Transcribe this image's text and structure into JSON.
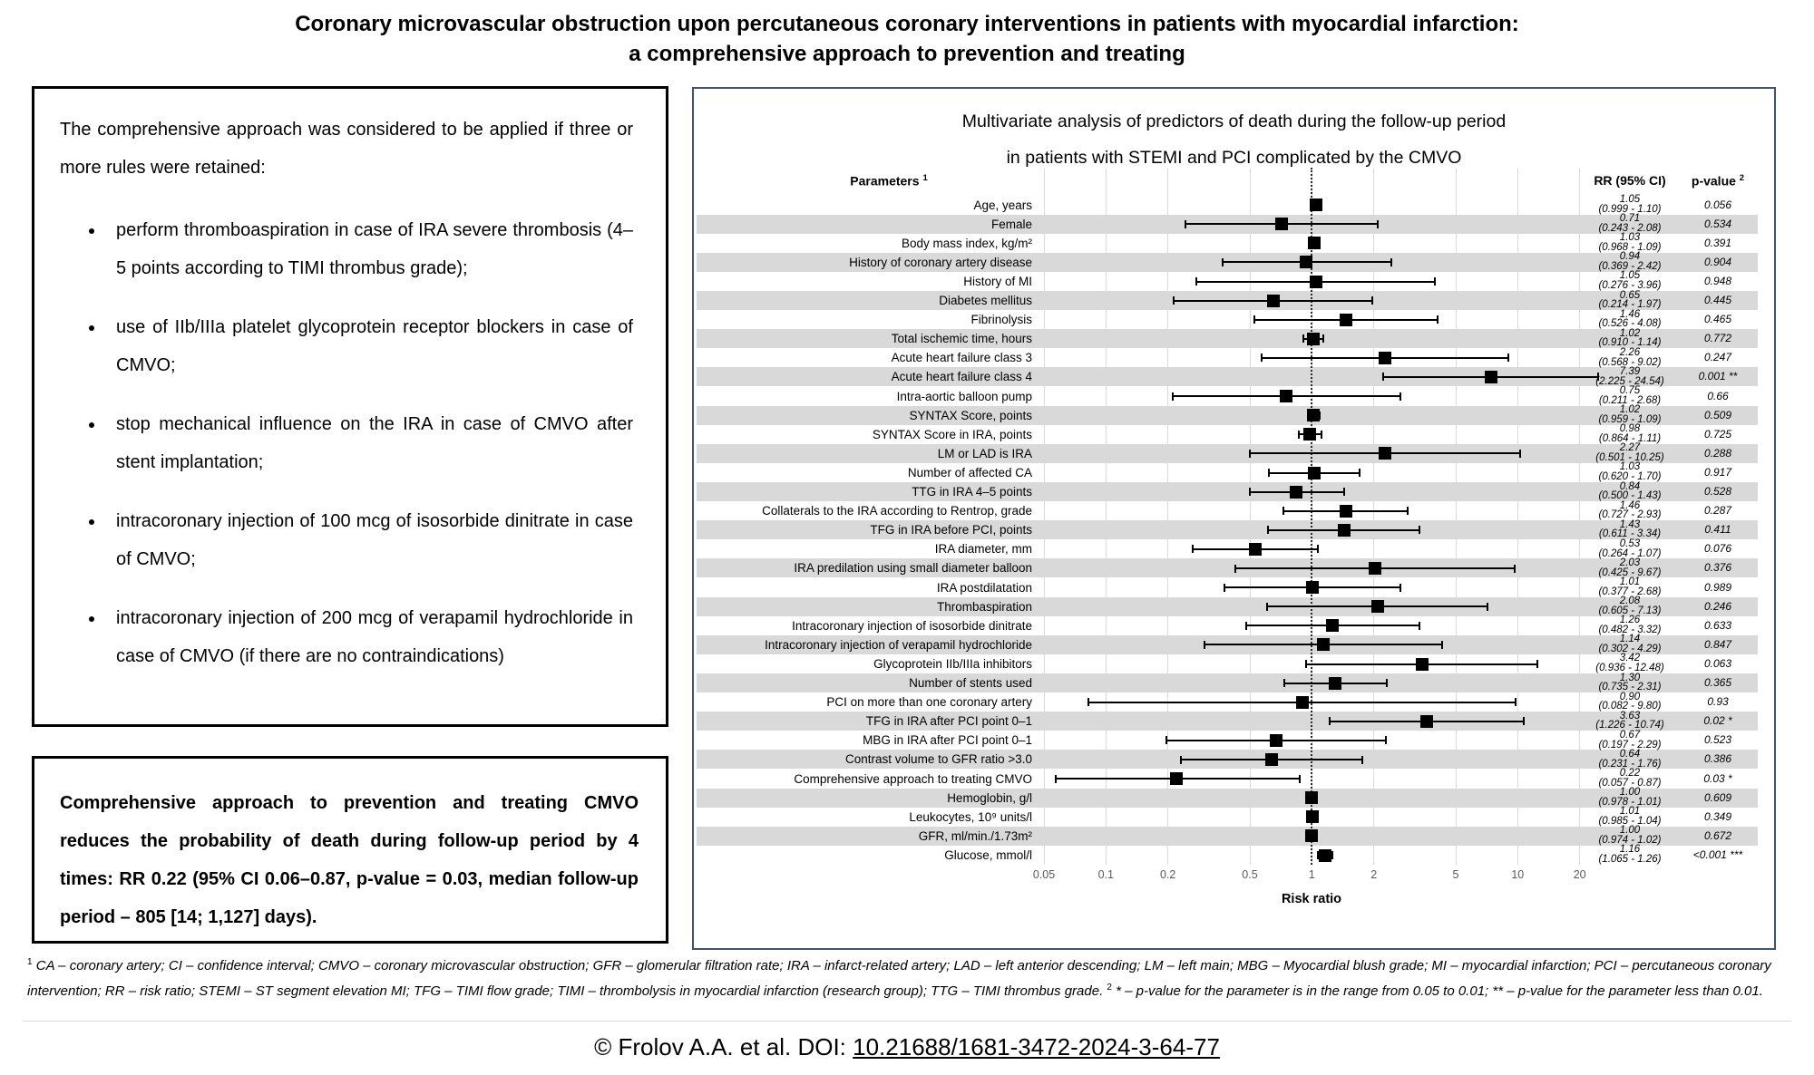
{
  "page": {
    "title_line1": "Coronary microvascular obstruction upon percutaneous coronary interventions in patients with myocardial infarction:",
    "title_line2": "a comprehensive approach to prevention and treating"
  },
  "left_panel": {
    "intro": "The comprehensive approach was considered to be applied if three or more rules were retained:",
    "bullets": [
      "perform thromboaspiration in case of IRA severe thrombosis (4–5 points according to TIMI thrombus grade);",
      "use of IIb/IIIa platelet glycoprotein receptor blockers in case of CMVO;",
      "stop mechanical influence on the IRA in case of CMVO after stent implantation;",
      "intracoronary injection of 100 mcg of isosorbide dinitrate in case of CMVO;",
      "intracoronary injection of 200 mcg of verapamil hydrochloride in case of CMVO (if there are no contraindications)"
    ]
  },
  "summary_panel": {
    "text": "Comprehensive approach to prevention and treating CMVO reduces the probability of death during follow-up period by 4 times: RR 0.22 (95% CI 0.06–0.87, p-value = 0.03, median follow-up period – 805 [14; 1,127] days)."
  },
  "footnote": {
    "marker1": "1",
    "part1": "CA – coronary artery; CI – confidence interval; CMVO – coronary microvascular obstruction; GFR – glomerular filtration rate; IRA – infarct-related artery; LAD – left anterior descending; LM – left main; MBG – Myocardial blush grade; MI – myocardial infarction; PCI – percutaneous coronary intervention; RR – risk ratio; STEMI – ST segment elevation MI; TFG – TIMI flow grade; TIMI – thrombolysis in myocardial infarction (research group); TTG – TIMI thrombus grade.",
    "marker2": "2",
    "part2": "* – p-value for the parameter is in the range from 0.05 to 0.01; ** – p-value for the parameter less than 0.01."
  },
  "citation": {
    "prefix": "© Frolov A.A. et al. DOI: ",
    "doi": "10.21688/1681-3472-2024-3-64-77"
  },
  "colors": {
    "stripe": "#d9d9d9",
    "gridline": "#d9d9d9",
    "panel_border": "#3d566e",
    "marker": "#000000",
    "tick_text": "#595959"
  },
  "chart_data": {
    "type": "scatter",
    "subtype": "forest-plot",
    "title_line1": "Multivariate analysis of predictors of death during the follow-up period",
    "title_line2": "in patients with STEMI and PCI complicated by the CMVO",
    "columns": {
      "parameters": "Parameters",
      "parameters_sup": "1",
      "rr": "RR (95% CI)",
      "pvalue": "p-value",
      "pvalue_sup": "2"
    },
    "xlabel": "Risk ratio",
    "x_scale": "log",
    "x_ticks": [
      0.05,
      0.1,
      0.2,
      0.5,
      1,
      2,
      5,
      10,
      20
    ],
    "reference_line": 1,
    "grid": true,
    "rows": [
      {
        "label": "Age, years",
        "rr": 1.05,
        "ci_low": 0.999,
        "ci_high": 1.1,
        "rr_text": "1.05",
        "ci_text": "(0.999 - 1.10)",
        "p_text": "0.056"
      },
      {
        "label": "Female",
        "rr": 0.71,
        "ci_low": 0.243,
        "ci_high": 2.08,
        "rr_text": "0.71",
        "ci_text": "(0.243 - 2.08)",
        "p_text": "0.534"
      },
      {
        "label": "Body mass index, kg/m²",
        "rr": 1.03,
        "ci_low": 0.968,
        "ci_high": 1.09,
        "rr_text": "1.03",
        "ci_text": "(0.968 - 1.09)",
        "p_text": "0.391"
      },
      {
        "label": "History of coronary artery disease",
        "rr": 0.94,
        "ci_low": 0.369,
        "ci_high": 2.42,
        "rr_text": "0.94",
        "ci_text": "(0.369 - 2.42)",
        "p_text": "0.904"
      },
      {
        "label": "History of MI",
        "rr": 1.05,
        "ci_low": 0.276,
        "ci_high": 3.96,
        "rr_text": "1.05",
        "ci_text": "(0.276 - 3.96)",
        "p_text": "0.948"
      },
      {
        "label": "Diabetes mellitus",
        "rr": 0.65,
        "ci_low": 0.214,
        "ci_high": 1.97,
        "rr_text": "0.65",
        "ci_text": "(0.214 - 1.97)",
        "p_text": "0.445"
      },
      {
        "label": "Fibrinolysis",
        "rr": 1.46,
        "ci_low": 0.526,
        "ci_high": 4.08,
        "rr_text": "1.46",
        "ci_text": "(0.526 - 4.08)",
        "p_text": "0.465"
      },
      {
        "label": "Total ischemic time, hours",
        "rr": 1.02,
        "ci_low": 0.91,
        "ci_high": 1.14,
        "rr_text": "1.02",
        "ci_text": "(0.910 - 1.14)",
        "p_text": "0.772"
      },
      {
        "label": "Acute heart failure class 3",
        "rr": 2.26,
        "ci_low": 0.568,
        "ci_high": 9.02,
        "rr_text": "2.26",
        "ci_text": "(0.568 - 9.02)",
        "p_text": "0.247"
      },
      {
        "label": "Acute heart failure class 4",
        "rr": 7.39,
        "ci_low": 2.225,
        "ci_high": 24.54,
        "rr_text": "7.39",
        "ci_text": "(2.225 - 24.54)",
        "p_text": "0.001 **"
      },
      {
        "label": "Intra-aortic balloon pump",
        "rr": 0.75,
        "ci_low": 0.211,
        "ci_high": 2.68,
        "rr_text": "0.75",
        "ci_text": "(0.211 - 2.68)",
        "p_text": "0.66"
      },
      {
        "label": "SYNTAX Score, points",
        "rr": 1.02,
        "ci_low": 0.959,
        "ci_high": 1.09,
        "rr_text": "1.02",
        "ci_text": "(0.959 - 1.09)",
        "p_text": "0.509"
      },
      {
        "label": "SYNTAX Score in IRA, points",
        "rr": 0.98,
        "ci_low": 0.864,
        "ci_high": 1.11,
        "rr_text": "0.98",
        "ci_text": "(0.864 - 1.11)",
        "p_text": "0.725"
      },
      {
        "label": "LM or LAD is IRA",
        "rr": 2.27,
        "ci_low": 0.501,
        "ci_high": 10.25,
        "rr_text": "2.27",
        "ci_text": "(0.501 - 10.25)",
        "p_text": "0.288"
      },
      {
        "label": "Number of affected CA",
        "rr": 1.03,
        "ci_low": 0.62,
        "ci_high": 1.7,
        "rr_text": "1.03",
        "ci_text": "(0.620 - 1.70)",
        "p_text": "0.917"
      },
      {
        "label": "TTG in IRA 4–5 points",
        "rr": 0.84,
        "ci_low": 0.5,
        "ci_high": 1.43,
        "rr_text": "0.84",
        "ci_text": "(0.500 - 1.43)",
        "p_text": "0.528"
      },
      {
        "label": "Collaterals to the IRA according to Rentrop, grade",
        "rr": 1.46,
        "ci_low": 0.727,
        "ci_high": 2.93,
        "rr_text": "1.46",
        "ci_text": "(0.727 - 2.93)",
        "p_text": "0.287"
      },
      {
        "label": "TFG in IRA before PCI, points",
        "rr": 1.43,
        "ci_low": 0.611,
        "ci_high": 3.34,
        "rr_text": "1.43",
        "ci_text": "(0.611 - 3.34)",
        "p_text": "0.411"
      },
      {
        "label": "IRA diameter, mm",
        "rr": 0.53,
        "ci_low": 0.264,
        "ci_high": 1.07,
        "rr_text": "0.53",
        "ci_text": "(0.264 - 1.07)",
        "p_text": "0.076"
      },
      {
        "label": "IRA predilation using small diameter balloon",
        "rr": 2.03,
        "ci_low": 0.425,
        "ci_high": 9.67,
        "rr_text": "2.03",
        "ci_text": "(0.425 - 9.67)",
        "p_text": "0.376"
      },
      {
        "label": "IRA postdilatation",
        "rr": 1.01,
        "ci_low": 0.377,
        "ci_high": 2.68,
        "rr_text": "1.01",
        "ci_text": "(0.377 - 2.68)",
        "p_text": "0.989"
      },
      {
        "label": "Thrombaspiration",
        "rr": 2.08,
        "ci_low": 0.605,
        "ci_high": 7.13,
        "rr_text": "2.08",
        "ci_text": "(0.605 - 7.13)",
        "p_text": "0.246"
      },
      {
        "label": "Intracoronary injection of isosorbide dinitrate",
        "rr": 1.26,
        "ci_low": 0.482,
        "ci_high": 3.32,
        "rr_text": "1.26",
        "ci_text": "(0.482 - 3.32)",
        "p_text": "0.633"
      },
      {
        "label": "Intracoronary injection of verapamil hydrochloride",
        "rr": 1.14,
        "ci_low": 0.302,
        "ci_high": 4.29,
        "rr_text": "1.14",
        "ci_text": "(0.302 - 4.29)",
        "p_text": "0.847"
      },
      {
        "label": "Glycoprotein IIb/IIIa inhibitors",
        "rr": 3.42,
        "ci_low": 0.936,
        "ci_high": 12.48,
        "rr_text": "3.42",
        "ci_text": "(0.936 - 12.48)",
        "p_text": "0.063"
      },
      {
        "label": "Number of stents used",
        "rr": 1.3,
        "ci_low": 0.735,
        "ci_high": 2.31,
        "rr_text": "1.30",
        "ci_text": "(0.735 - 2.31)",
        "p_text": "0.365"
      },
      {
        "label": "PCI on more than one coronary artery",
        "rr": 0.9,
        "ci_low": 0.082,
        "ci_high": 9.8,
        "rr_text": "0.90",
        "ci_text": "(0.082 - 9.80)",
        "p_text": "0.93"
      },
      {
        "label": "TFG in IRA after PCI point 0–1",
        "rr": 3.63,
        "ci_low": 1.226,
        "ci_high": 10.74,
        "rr_text": "3.63",
        "ci_text": "(1.226 - 10.74)",
        "p_text": "0.02 *"
      },
      {
        "label": "MBG in IRA after PCI point 0–1",
        "rr": 0.67,
        "ci_low": 0.197,
        "ci_high": 2.29,
        "rr_text": "0.67",
        "ci_text": "(0.197 - 2.29)",
        "p_text": "0.523"
      },
      {
        "label": "Contrast volume to GFR ratio >3.0",
        "rr": 0.64,
        "ci_low": 0.231,
        "ci_high": 1.76,
        "rr_text": "0.64",
        "ci_text": "(0.231 - 1.76)",
        "p_text": "0.386"
      },
      {
        "label": "Comprehensive approach to treating CMVO",
        "rr": 0.22,
        "ci_low": 0.057,
        "ci_high": 0.87,
        "rr_text": "0.22",
        "ci_text": "(0.057 - 0.87)",
        "p_text": "0.03 *"
      },
      {
        "label": "Hemoglobin, g/l",
        "rr": 1.0,
        "ci_low": 0.978,
        "ci_high": 1.01,
        "rr_text": "1.00",
        "ci_text": "(0.978 - 1.01)",
        "p_text": "0.609"
      },
      {
        "label": "Leukocytes, 10⁹ units/l",
        "rr": 1.01,
        "ci_low": 0.985,
        "ci_high": 1.04,
        "rr_text": "1.01",
        "ci_text": "(0.985 - 1.04)",
        "p_text": "0.349"
      },
      {
        "label": "GFR, ml/min./1.73m²",
        "rr": 1.0,
        "ci_low": 0.974,
        "ci_high": 1.02,
        "rr_text": "1.00",
        "ci_text": "(0.974 - 1.02)",
        "p_text": "0.672"
      },
      {
        "label": "Glucose, mmol/l",
        "rr": 1.16,
        "ci_low": 1.065,
        "ci_high": 1.26,
        "rr_text": "1.16",
        "ci_text": "(1.065 - 1.26)",
        "p_text": "<0.001 ***"
      }
    ]
  }
}
